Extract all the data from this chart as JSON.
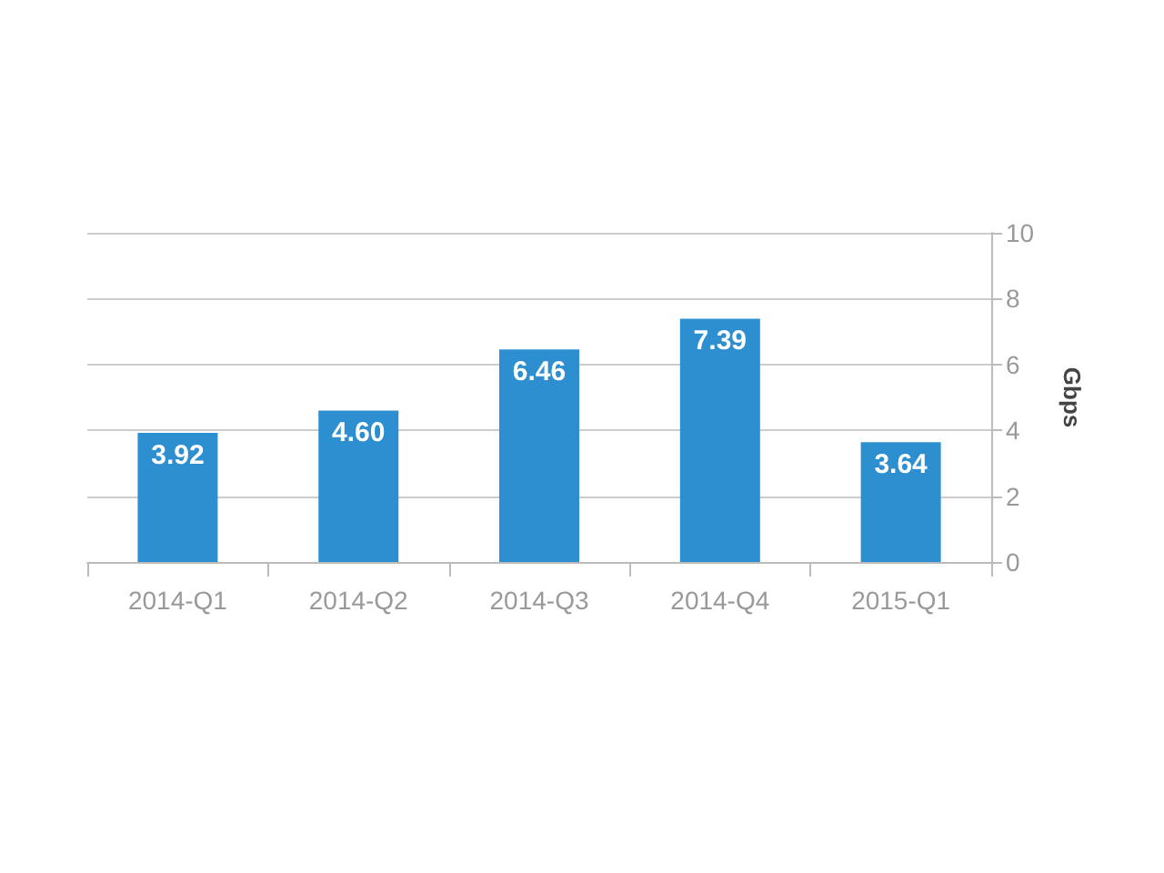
{
  "chart_data": {
    "type": "bar",
    "categories": [
      "2014-Q1",
      "2014-Q2",
      "2014-Q3",
      "2014-Q4",
      "2015-Q1"
    ],
    "values": [
      3.92,
      4.6,
      6.46,
      7.39,
      3.64
    ],
    "color": "#2e8fd0",
    "ylabel": "Gbps",
    "ylim": [
      0,
      10
    ],
    "yticks": [
      0,
      2,
      4,
      6,
      8,
      10
    ],
    "value_labels": [
      "3.92",
      "4.60",
      "6.46",
      "7.39",
      "3.64"
    ],
    "grid": "y"
  }
}
